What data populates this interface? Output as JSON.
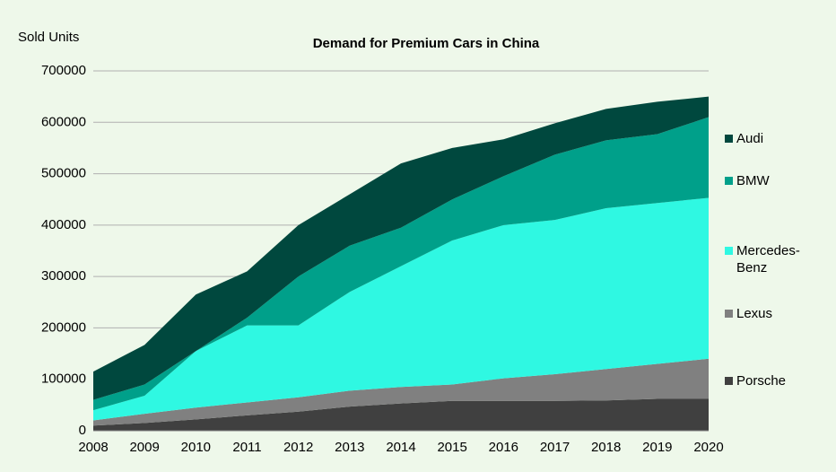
{
  "chart_data": {
    "type": "stacked_area",
    "title": "Demand for Premium Cars in China",
    "y_label": "Sold Units",
    "categories": [
      "2008",
      "2009",
      "2010",
      "2011",
      "2012",
      "2013",
      "2014",
      "2015",
      "2016",
      "2017",
      "2018",
      "2019",
      "2020"
    ],
    "series": [
      {
        "name": "Porsche",
        "color": "#404040",
        "values": [
          10000,
          15000,
          22000,
          30000,
          37000,
          47000,
          53000,
          58000,
          58000,
          58000,
          59000,
          62000,
          62000
        ]
      },
      {
        "name": "Lexus",
        "color": "#808080",
        "values": [
          10000,
          18000,
          23000,
          25000,
          28000,
          31000,
          32000,
          32000,
          44000,
          52000,
          61000,
          68000,
          78000
        ]
      },
      {
        "name": "Mercedes-Benz",
        "color": "#2ff8e2",
        "values": [
          20000,
          35000,
          110000,
          150000,
          140000,
          192000,
          235000,
          280000,
          298000,
          300000,
          313000,
          313000,
          313000
        ]
      },
      {
        "name": "BMW",
        "color": "#00a08a",
        "values": [
          20000,
          22000,
          0,
          15000,
          95000,
          90000,
          75000,
          80000,
          95000,
          127000,
          132000,
          134000,
          157000
        ]
      },
      {
        "name": "Audi",
        "color": "#00483e",
        "values": [
          55000,
          77000,
          110000,
          90000,
          100000,
          100000,
          125000,
          100000,
          72000,
          61000,
          61000,
          63000,
          40000
        ]
      }
    ],
    "ylim": [
      0,
      700000
    ],
    "yticks": [
      0,
      100000,
      200000,
      300000,
      400000,
      500000,
      600000,
      700000
    ],
    "grid": true,
    "legend": "right"
  }
}
